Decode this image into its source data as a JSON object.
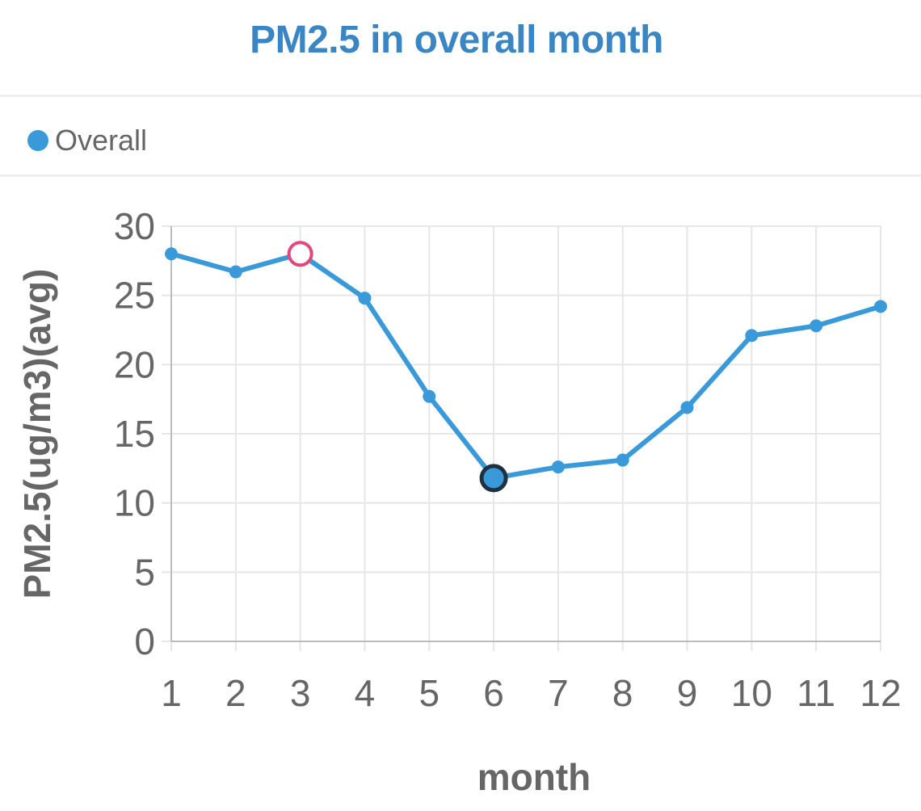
{
  "panel": {
    "title": "PM2.5 in overall month"
  },
  "colors": {
    "accent": "#3a9ad9",
    "title": "#3a86c4",
    "highlight_max": "#e0497a",
    "highlight_min_stroke": "#1f3140",
    "grid": "#e6e6e6",
    "axis": "#666666"
  },
  "legend": {
    "label": "Overall",
    "icon": "dot"
  },
  "chart_data": {
    "type": "line",
    "title": "PM2.5 in overall month",
    "xlabel": "month",
    "ylabel": "PM2.5(ug/m3)(avg)",
    "x": [
      1,
      2,
      3,
      4,
      5,
      6,
      7,
      8,
      9,
      10,
      11,
      12
    ],
    "x_tick_labels": [
      "1",
      "2",
      "3",
      "4",
      "5",
      "6",
      "7",
      "8",
      "9",
      "10",
      "11",
      "12"
    ],
    "y_ticks": [
      0,
      5,
      10,
      15,
      20,
      25,
      30
    ],
    "y_tick_labels": [
      "0",
      "5",
      "10",
      "15",
      "20",
      "25",
      "30"
    ],
    "ylim": [
      0,
      30
    ],
    "grid": true,
    "legend_position": "top-left",
    "series": [
      {
        "name": "Overall",
        "values": [
          28.0,
          26.7,
          28.0,
          24.8,
          17.7,
          11.8,
          12.6,
          13.1,
          16.9,
          22.1,
          22.8,
          24.2
        ]
      }
    ],
    "highlighted_points": [
      {
        "x": 3,
        "style": "max-ring"
      },
      {
        "x": 6,
        "style": "min-dark"
      }
    ]
  }
}
